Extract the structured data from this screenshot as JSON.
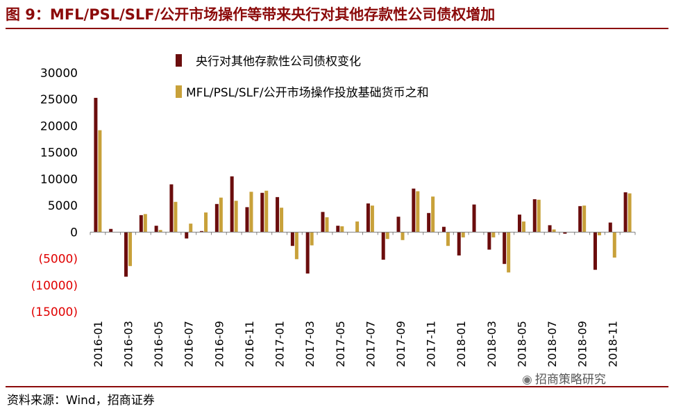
{
  "figure": {
    "title": "图 9：MFL/PSL/SLF/公开市场操作等带来央行对其他存款性公司债权增加",
    "source": "资料来源：Wind，招商证券",
    "watermark": "招商策略研究",
    "watermark_icon": "wechat-icon"
  },
  "colors": {
    "accent": "#8b0a0a",
    "series1": "#6b0d0d",
    "series2": "#c8a13a",
    "negative_tick": "#e00000"
  },
  "chart_data": {
    "type": "bar",
    "title": "",
    "xlabel": "",
    "ylabel": "",
    "ylim": [
      -15000,
      30000
    ],
    "yticks": [
      30000,
      25000,
      20000,
      15000,
      10000,
      5000,
      0,
      -5000,
      -10000,
      -15000
    ],
    "ytick_labels": [
      "30000",
      "25000",
      "20000",
      "15000",
      "10000",
      "5000",
      "0",
      "(5000)",
      "(10000)",
      "(15000)"
    ],
    "legend_position": "top-center",
    "grid": false,
    "categories": [
      "2016-01",
      "2016-02",
      "2016-03",
      "2016-04",
      "2016-05",
      "2016-06",
      "2016-07",
      "2016-08",
      "2016-09",
      "2016-10",
      "2016-11",
      "2016-12",
      "2017-01",
      "2017-02",
      "2017-03",
      "2017-04",
      "2017-05",
      "2017-06",
      "2017-07",
      "2017-08",
      "2017-09",
      "2017-10",
      "2017-11",
      "2017-12",
      "2018-01",
      "2018-02",
      "2018-03",
      "2018-04",
      "2018-05",
      "2018-06",
      "2018-07",
      "2018-08",
      "2018-09",
      "2018-10",
      "2018-11",
      "2018-12"
    ],
    "x_tick_labels": [
      "2016-01",
      "2016-03",
      "2016-05",
      "2016-07",
      "2016-09",
      "2016-11",
      "2017-01",
      "2017-03",
      "2017-05",
      "2017-07",
      "2017-09",
      "2017-11",
      "2018-01",
      "2018-03",
      "2018-05",
      "2018-07",
      "2018-09",
      "2018-11"
    ],
    "series": [
      {
        "name": "央行对其他存款性公司债权变化",
        "values": [
          25300,
          600,
          -8400,
          3200,
          1200,
          9000,
          -1200,
          200,
          5300,
          10500,
          4700,
          7400,
          6600,
          -2600,
          -7800,
          3800,
          1200,
          0,
          5400,
          -5200,
          2900,
          8200,
          3600,
          1000,
          -4400,
          5200,
          -3300,
          -6000,
          3300,
          6200,
          1300,
          -300,
          4900,
          -7100,
          1800,
          7500
        ]
      },
      {
        "name": "MFL/PSL/SLF/公开市场操作投放基础货币之和",
        "values": [
          19200,
          0,
          -6400,
          3400,
          400,
          5700,
          1600,
          3700,
          6500,
          5900,
          7600,
          7800,
          4600,
          -5100,
          -2500,
          2800,
          1100,
          2000,
          5000,
          -1300,
          -1500,
          7700,
          6700,
          -2600,
          -1000,
          0,
          -1000,
          -7600,
          2000,
          6100,
          500,
          0,
          5000,
          -600,
          -4800,
          7300
        ]
      }
    ]
  }
}
